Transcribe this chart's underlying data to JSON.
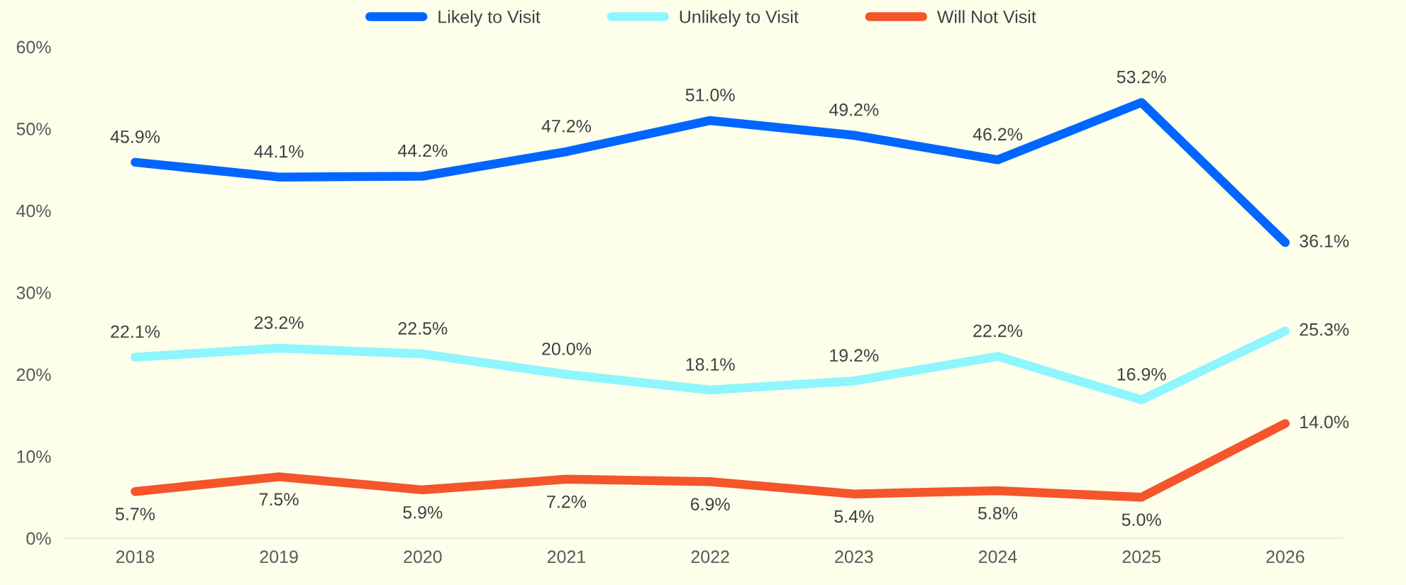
{
  "chart_data": {
    "type": "line",
    "categories": [
      "2018",
      "2019",
      "2020",
      "2021",
      "2022",
      "2023",
      "2024",
      "2025",
      "2026"
    ],
    "series": [
      {
        "name": "Likely to Visit",
        "color": "#0066ff",
        "values": [
          45.9,
          44.1,
          44.2,
          47.2,
          51.0,
          49.2,
          46.2,
          53.2,
          36.1
        ],
        "value_labels": [
          "45.9%",
          "44.1%",
          "44.2%",
          "47.2%",
          "51.0%",
          "49.2%",
          "46.2%",
          "53.2%",
          "36.1%"
        ]
      },
      {
        "name": "Unlikely to Visit",
        "color": "#8ff5ff",
        "values": [
          22.1,
          23.2,
          22.5,
          20.0,
          18.1,
          19.2,
          22.2,
          16.9,
          25.3
        ],
        "value_labels": [
          "22.1%",
          "23.2%",
          "22.5%",
          "20.0%",
          "18.1%",
          "19.2%",
          "22.2%",
          "16.9%",
          "25.3%"
        ]
      },
      {
        "name": "Will Not Visit",
        "color": "#f4552a",
        "values": [
          5.7,
          7.5,
          5.9,
          7.2,
          6.9,
          5.4,
          5.8,
          5.0,
          14.0
        ],
        "value_labels": [
          "5.7%",
          "7.5%",
          "5.9%",
          "7.2%",
          "6.9%",
          "5.4%",
          "5.8%",
          "5.0%",
          "14.0%"
        ]
      }
    ],
    "ylim": [
      0,
      60
    ],
    "yticks": [
      {
        "value": 0,
        "label": "0%"
      },
      {
        "value": 10,
        "label": "10%"
      },
      {
        "value": 20,
        "label": "20%"
      },
      {
        "value": 30,
        "label": "30%"
      },
      {
        "value": 40,
        "label": "40%"
      },
      {
        "value": 50,
        "label": "50%"
      },
      {
        "value": 60,
        "label": "60%"
      }
    ],
    "grid": false,
    "legend": "top",
    "marker": "none",
    "line_style": "solid"
  }
}
